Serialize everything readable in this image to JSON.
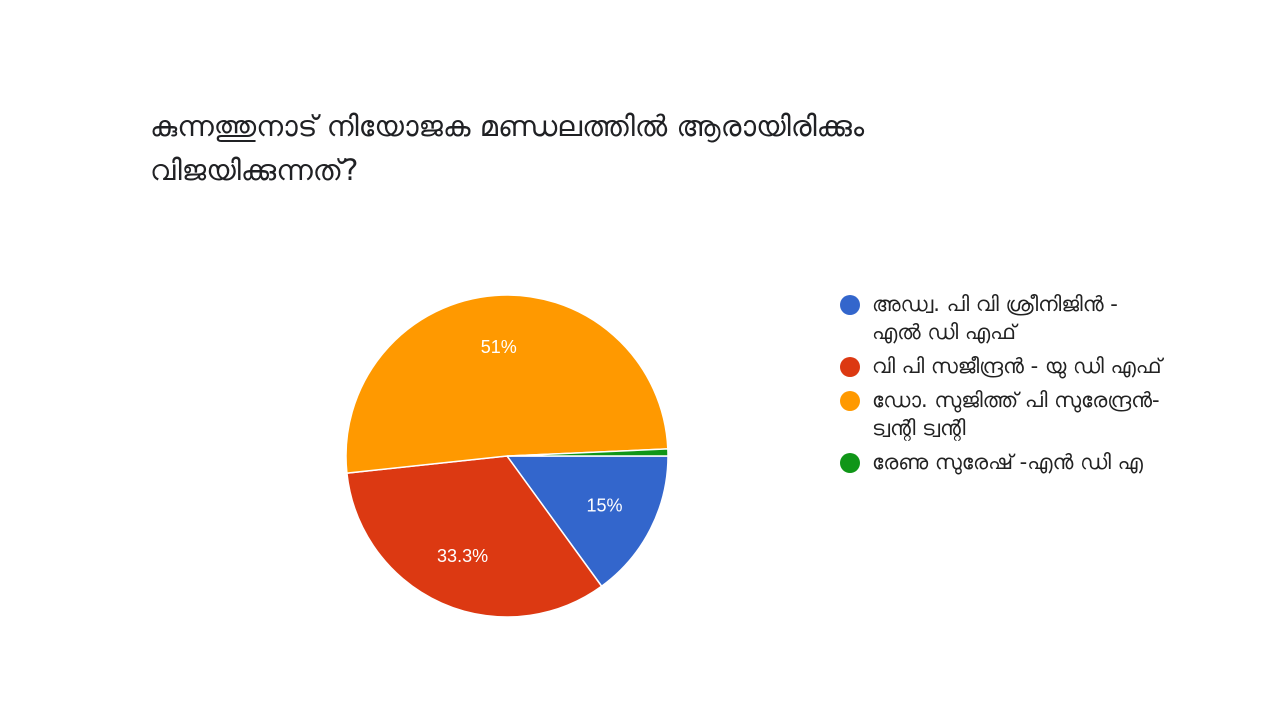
{
  "chart_data": {
    "type": "pie",
    "title": "കുന്നത്തുനാട് നിയോജക മണ്ഡലത്തിൽ ആരായിരിക്കും വിജയിക്കുന്നത്?",
    "categories": [
      "അഡ്വ. പി വി ശ്രീനിജിൻ - എൽ ഡി എഫ്",
      "വി പി സജീന്ദ്രൻ - യു ഡി എഫ്",
      "ഡോ. സുജിത്ത് പി സുരേന്ദ്രൻ- ട്വന്റി ട്വന്റി",
      "രേണു സുരേഷ് -എൻ ഡി എ"
    ],
    "values": [
      15,
      33.3,
      51,
      0.7
    ],
    "labels": [
      "15%",
      "33.3%",
      "51%",
      ""
    ],
    "colors": [
      "#3366cc",
      "#dc3912",
      "#ff9900",
      "#109618"
    ],
    "legend": "right",
    "start_angle": "3 o'clock, clockwise"
  }
}
